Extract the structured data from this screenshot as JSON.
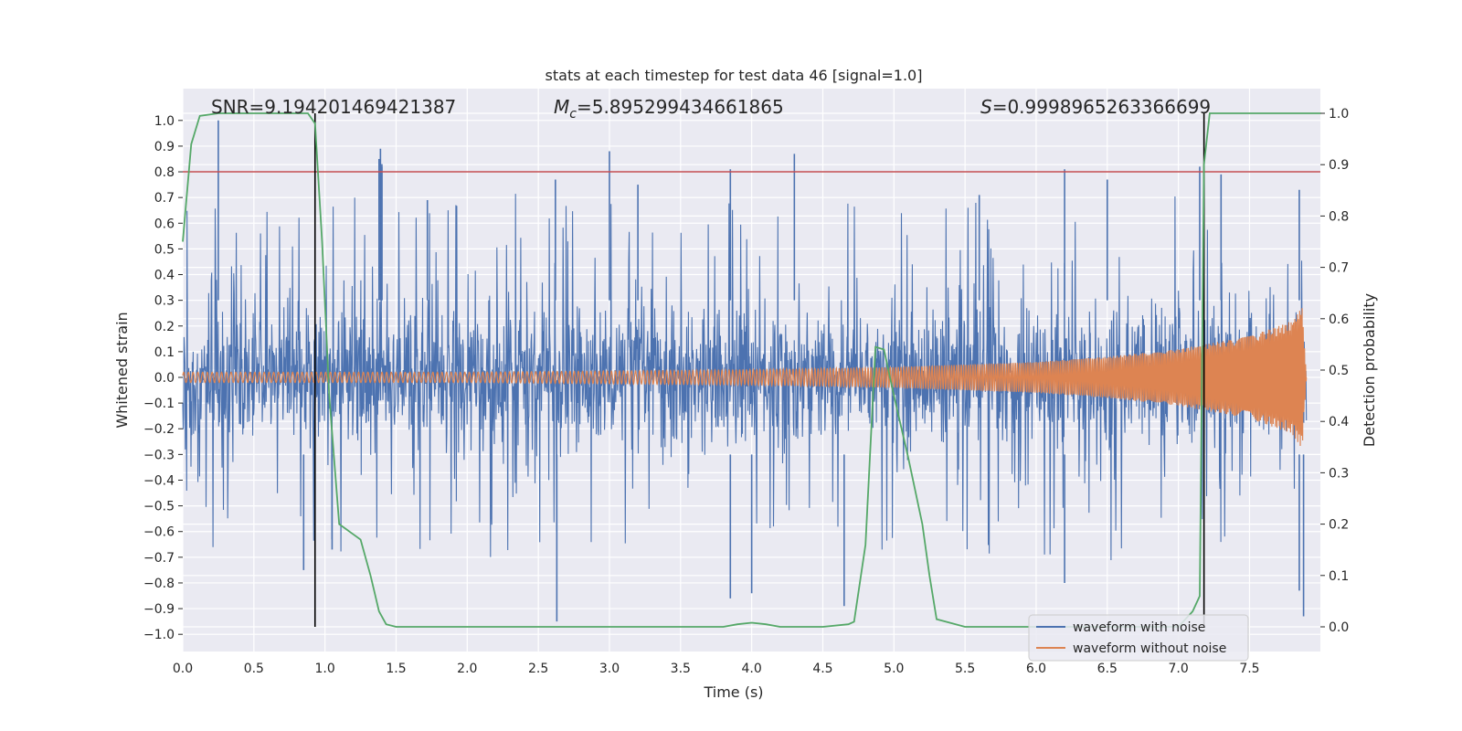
{
  "chart_data": {
    "type": "line",
    "title": "stats at each timestep for test data 46 [signal=1.0]",
    "xlabel": "Time (s)",
    "ylabel_left": "Whitened strain",
    "ylabel_right": "Detection probability",
    "xlim": [
      0.0,
      8.0
    ],
    "ylim_left": [
      -1.1,
      1.1
    ],
    "ylim_right": [
      -0.05,
      1.05
    ],
    "xticks": [
      "0.0",
      "0.5",
      "1.0",
      "1.5",
      "2.0",
      "2.5",
      "3.0",
      "3.5",
      "4.0",
      "4.5",
      "5.0",
      "5.5",
      "6.0",
      "6.5",
      "7.0",
      "7.5"
    ],
    "yticks_left": [
      "1.0",
      "0.9",
      "0.8",
      "0.7",
      "0.6",
      "0.5",
      "0.4",
      "0.3",
      "0.2",
      "0.1",
      "0.0",
      "−0.1",
      "−0.2",
      "−0.3",
      "−0.4",
      "−0.5",
      "−0.6",
      "−0.7",
      "−0.8",
      "−0.9",
      "−1.0"
    ],
    "yticks_right": [
      "1.0",
      "0.9",
      "0.8",
      "0.7",
      "0.6",
      "0.5",
      "0.4",
      "0.3",
      "0.2",
      "0.1",
      "0.0"
    ],
    "annotations": {
      "snr_label": "SNR=9.194201469421387",
      "mc_symbol": "M",
      "mc_subscript": "c",
      "mc_value": "=5.895299434661865",
      "s_symbol": "S",
      "s_value": "=0.9998965263366699"
    },
    "threshold": {
      "value": 0.8,
      "axis": "left",
      "color": "#c44e52"
    },
    "vertical_markers": [
      0.93,
      7.18
    ],
    "grid": true,
    "legend_position": "lower-right",
    "series": [
      {
        "name": "waveform with noise",
        "color": "#4c72b0",
        "axis": "left",
        "duration": 7.9,
        "approx_range": [
          -0.95,
          1.0
        ],
        "notable_peaks": [
          [
            0.25,
            1.0
          ],
          [
            1.4,
            0.82
          ],
          [
            1.4,
            0.83
          ],
          [
            1.38,
            0.85
          ],
          [
            1.39,
            0.89
          ],
          [
            1.72,
            0.69
          ],
          [
            2.62,
            0.77
          ],
          [
            3.0,
            0.88
          ],
          [
            3.2,
            0.75
          ],
          [
            3.85,
            0.81
          ],
          [
            4.3,
            0.87
          ],
          [
            5.6,
            0.71
          ],
          [
            6.2,
            0.81
          ],
          [
            6.5,
            0.77
          ],
          [
            7.15,
            0.82
          ],
          [
            7.3,
            0.79
          ],
          [
            7.85,
            0.73
          ]
        ],
        "notable_troughs": [
          [
            0.85,
            -0.75
          ],
          [
            1.05,
            -0.67
          ],
          [
            2.63,
            -0.95
          ],
          [
            3.85,
            -0.86
          ],
          [
            4.0,
            -0.84
          ],
          [
            4.65,
            -0.89
          ],
          [
            6.2,
            -0.8
          ],
          [
            7.85,
            -0.83
          ],
          [
            7.88,
            -0.93
          ]
        ]
      },
      {
        "name": "waveform without noise",
        "color": "#dd8452",
        "axis": "left",
        "description_points": [
          [
            0.0,
            0.02
          ],
          [
            1.0,
            0.02
          ],
          [
            2.0,
            0.02
          ],
          [
            3.0,
            0.025
          ],
          [
            4.0,
            0.03
          ],
          [
            5.0,
            0.04
          ],
          [
            6.0,
            0.06
          ],
          [
            6.5,
            0.08
          ],
          [
            7.0,
            0.11
          ],
          [
            7.5,
            0.16
          ],
          [
            7.8,
            0.22
          ],
          [
            7.87,
            0.28
          ],
          [
            7.9,
            0.0
          ]
        ]
      },
      {
        "name": "detection probability",
        "color": "#55a868",
        "axis": "right",
        "x": [
          0.0,
          0.06,
          0.12,
          0.25,
          0.5,
          0.7,
          0.88,
          0.93,
          0.98,
          1.03,
          1.1,
          1.25,
          1.32,
          1.38,
          1.43,
          1.5,
          2.0,
          3.0,
          3.8,
          3.9,
          4.0,
          4.1,
          4.2,
          4.5,
          4.68,
          4.72,
          4.8,
          4.87,
          4.93,
          5.0,
          5.1,
          5.2,
          5.25,
          5.3,
          5.5,
          6.0,
          6.5,
          7.0,
          7.1,
          7.15,
          7.18,
          7.22,
          7.3,
          7.5,
          8.0
        ],
        "y": [
          0.75,
          0.94,
          0.995,
          1.0,
          1.0,
          1.0,
          1.0,
          0.98,
          0.75,
          0.45,
          0.2,
          0.17,
          0.1,
          0.03,
          0.005,
          0.0,
          0.0,
          0.0,
          0.0,
          0.005,
          0.008,
          0.005,
          0.0,
          0.0,
          0.005,
          0.01,
          0.16,
          0.545,
          0.54,
          0.45,
          0.33,
          0.2,
          0.1,
          0.015,
          0.0,
          0.0,
          0.0,
          0.0,
          0.03,
          0.06,
          0.9,
          1.0,
          1.0,
          1.0,
          1.0
        ]
      }
    ]
  }
}
